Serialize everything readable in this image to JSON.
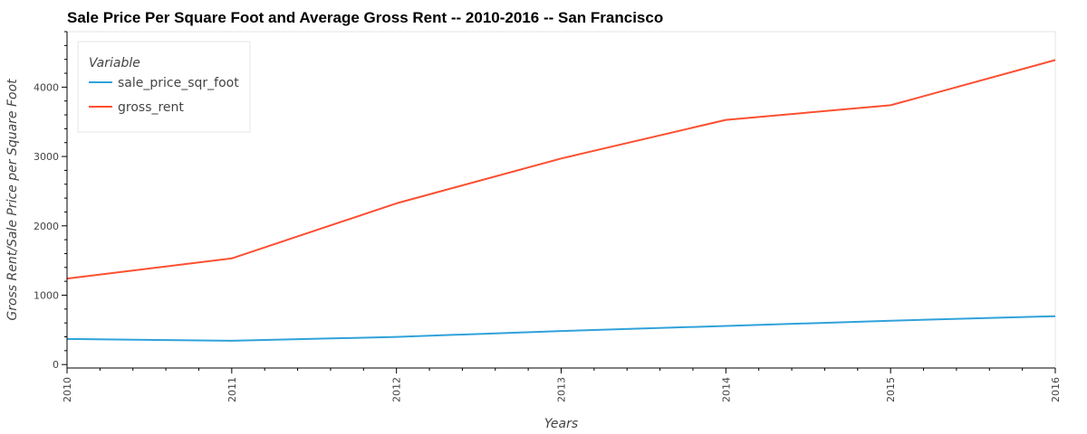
{
  "chart_data": {
    "type": "line",
    "title": "Sale Price Per Square Foot and Average Gross Rent -- 2010-2016 -- San Francisco",
    "xlabel": "Years",
    "ylabel": "Gross Rent/Sale Price per Square Foot",
    "x": [
      2010,
      2011,
      2012,
      2013,
      2014,
      2015,
      2016
    ],
    "xlim": [
      2010,
      2016
    ],
    "ylim": [
      -50,
      4800
    ],
    "yticks": [
      0,
      1000,
      2000,
      3000,
      4000
    ],
    "legend": {
      "title": "Variable",
      "position": "top-left"
    },
    "grid": false,
    "series": [
      {
        "name": "sale_price_sqr_foot",
        "color": "#30a2da",
        "values": [
          369,
          342,
          399,
          483,
          556,
          632,
          697
        ]
      },
      {
        "name": "gross_rent",
        "color": "#fc4f30",
        "values": [
          1239,
          1530,
          2324,
          2971,
          3528,
          3739,
          4390
        ]
      }
    ]
  }
}
